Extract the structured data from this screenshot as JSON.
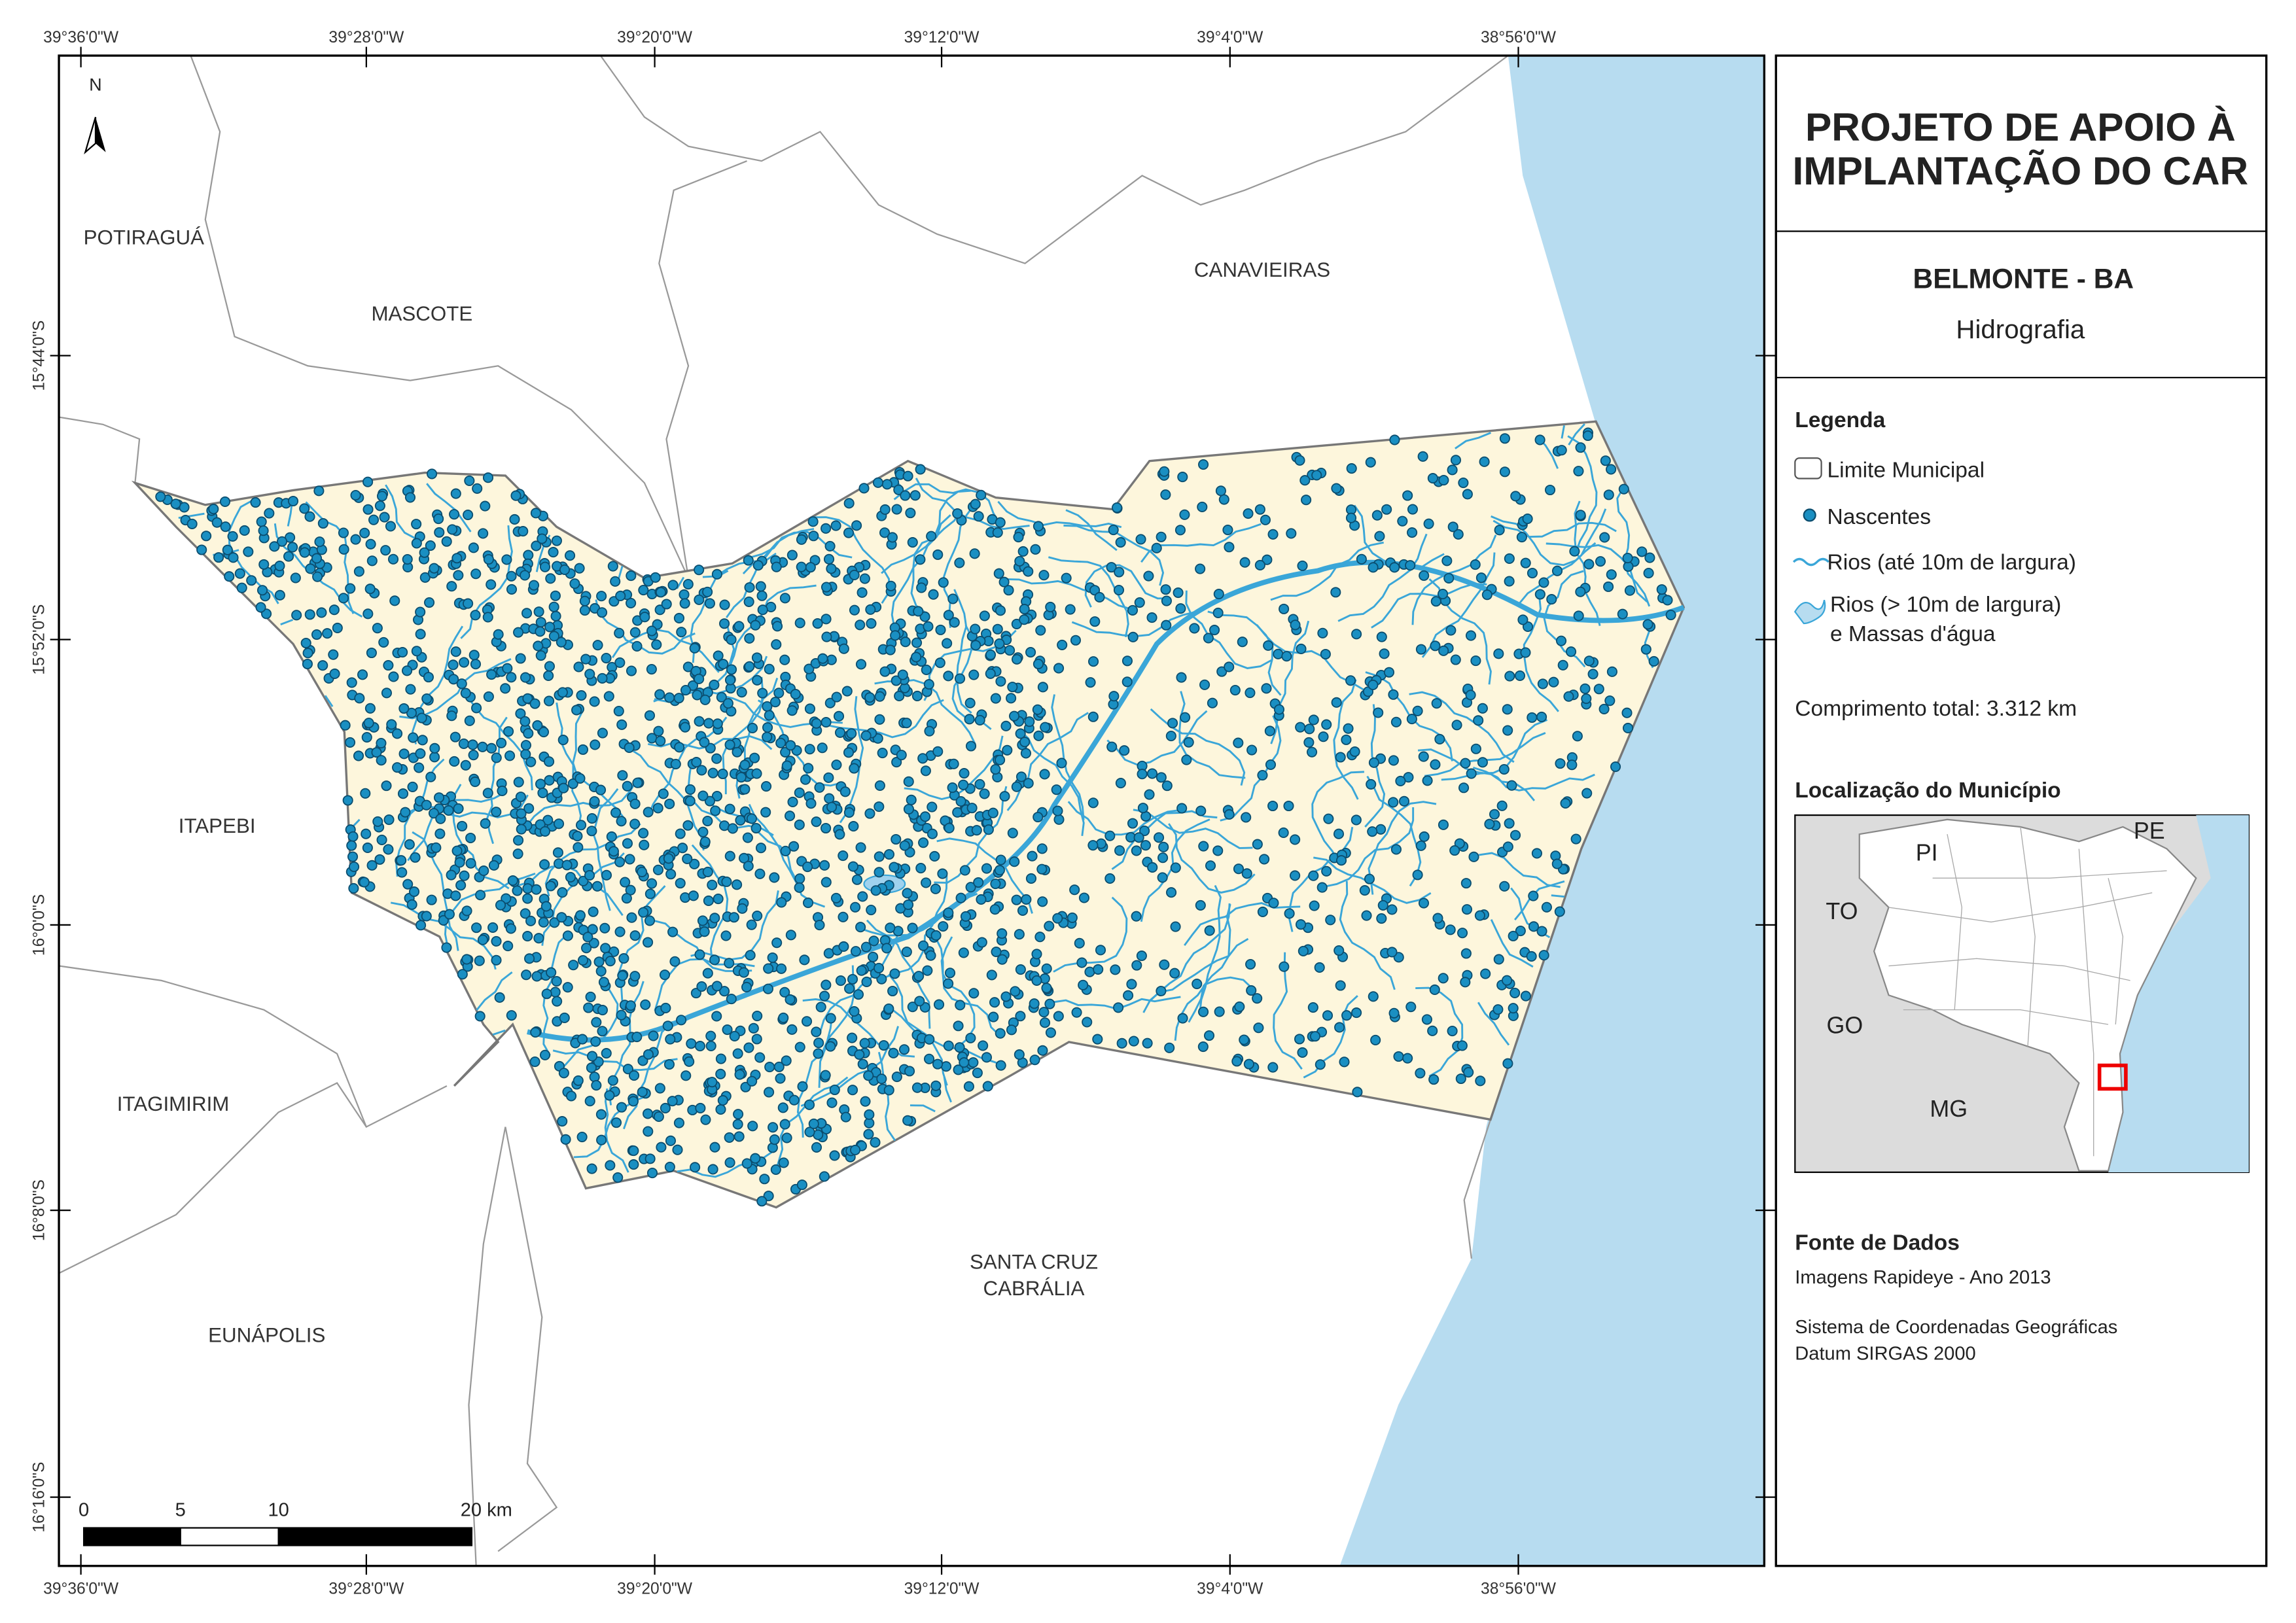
{
  "map": {
    "north": "N",
    "lon_labels": [
      "39°36'0\"W",
      "39°28'0\"W",
      "39°20'0\"W",
      "39°12'0\"W",
      "39°4'0\"W",
      "38°56'0\"W"
    ],
    "lat_labels": [
      "15°44'0\"S",
      "15°52'0\"S",
      "16°0'0\"S",
      "16°8'0\"S",
      "16°16'0\"S"
    ],
    "places": [
      {
        "name": [
          "POTIRAGUÁ"
        ]
      },
      {
        "name": [
          "MASCOTE"
        ]
      },
      {
        "name": [
          "CANAVIEIRAS"
        ]
      },
      {
        "name": [
          "ITAPEBI"
        ]
      },
      {
        "name": [
          "ITAGIMIRIM"
        ]
      },
      {
        "name": [
          "SANTA CRUZ",
          "CABRÁLIA"
        ]
      },
      {
        "name": [
          "EUNÁPOLIS"
        ]
      }
    ],
    "scale_labels": [
      "0",
      "5",
      "10",
      "20 km"
    ]
  },
  "panel": {
    "title": [
      "PROJETO DE APOIO À",
      "IMPLANTAÇÃO DO CAR"
    ],
    "municipality": "BELMONTE - BA",
    "theme": "Hidrografia",
    "legend": {
      "heading": "Legenda",
      "items": [
        [
          "Limite Municipal"
        ],
        [
          "Nascentes"
        ],
        [
          "Rios (até 10m de largura)"
        ],
        [
          "Rios (> 10m de largura)",
          "e Massas d'água"
        ]
      ]
    },
    "length": "Comprimento total:  3.312 km",
    "location": {
      "heading": "Localização do Município",
      "states": [
        "PI",
        "PE",
        "TO",
        "GO",
        "MG"
      ]
    },
    "sources": {
      "heading": "Fonte de Dados",
      "lines": [
        "Imagens Rapideye - Ano 2013",
        "Sistema de Coordenadas Geográficas",
        "Datum SIRGAS 2000"
      ]
    }
  }
}
